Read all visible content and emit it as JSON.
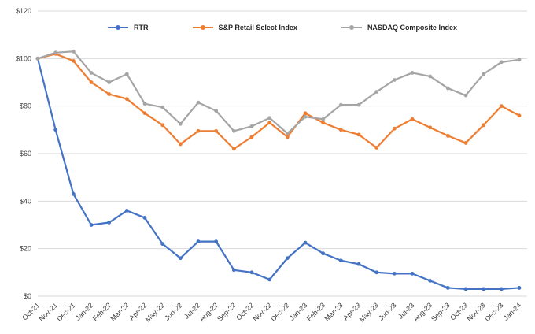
{
  "chart_data": {
    "type": "line",
    "title": "",
    "xlabel": "",
    "ylabel": "",
    "legend_position": "top",
    "grid": true,
    "grid_color": "#D9D9D9",
    "axis_text_color": "#404040",
    "ylim": [
      0,
      120
    ],
    "ytick_values": [
      0,
      20,
      40,
      60,
      80,
      100,
      120
    ],
    "ytick_labels": [
      "$0",
      "$20",
      "$40",
      "$60",
      "$80",
      "$100",
      "$120"
    ],
    "categories": [
      "Oct-21",
      "Nov-21",
      "Dec-21",
      "Jan-22",
      "Feb-22",
      "Mar-22",
      "Apr-22",
      "May-22",
      "Jun-22",
      "Jul-22",
      "Aug-22",
      "Sep-22",
      "Oct-22",
      "Nov-22",
      "Dec-22",
      "Jan-23",
      "Feb-23",
      "Mar-23",
      "Apr-23",
      "May-23",
      "Jun-23",
      "Jul-23",
      "Aug-23",
      "Sep-23",
      "Oct-23",
      "Nov-23",
      "Dec-23",
      "Jan-24"
    ],
    "series": [
      {
        "name": "RTR",
        "color": "#4472C4",
        "values": [
          100,
          70,
          43,
          30,
          31,
          36,
          33,
          22,
          16,
          23,
          23,
          11,
          10,
          7,
          16,
          22.5,
          18,
          15,
          13.5,
          10,
          9.5,
          9.5,
          6.5,
          3.5,
          3,
          3,
          3,
          3.5
        ]
      },
      {
        "name": "S&P Retail Select Index",
        "color": "#ED7D31",
        "values": [
          100,
          102,
          99,
          90,
          85,
          83,
          77,
          72,
          64,
          69.5,
          69.5,
          62,
          67,
          73,
          67,
          77,
          73,
          70,
          68,
          62.5,
          70.5,
          74.5,
          71,
          67.5,
          64.5,
          72,
          80,
          76
        ]
      },
      {
        "name": "NASDAQ Composite Index",
        "color": "#A5A5A5",
        "values": [
          100,
          102.5,
          103,
          94,
          90,
          93.5,
          81,
          79.5,
          72.5,
          81.5,
          78,
          69.5,
          71.5,
          75,
          68.5,
          75.5,
          74.5,
          80.5,
          80.5,
          86,
          91,
          94,
          92.5,
          87.5,
          84.5,
          93.5,
          98.5,
          99.5
        ]
      }
    ]
  }
}
